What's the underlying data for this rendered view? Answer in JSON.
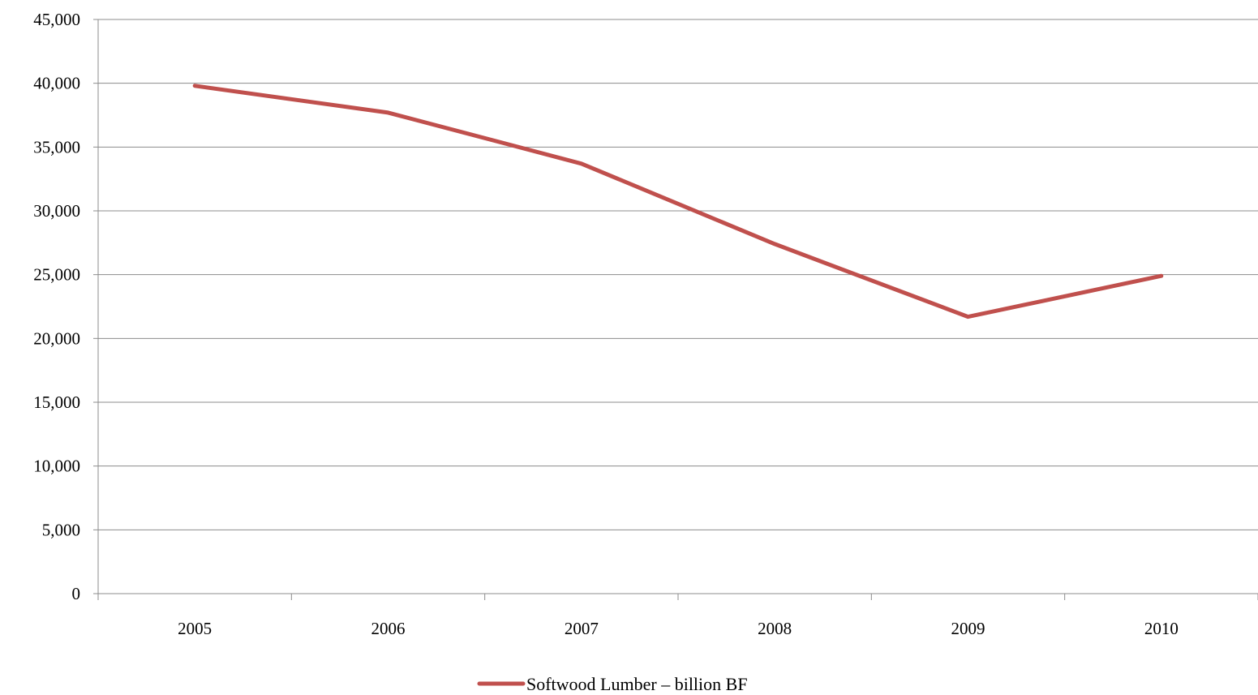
{
  "chart_data": {
    "type": "line",
    "categories": [
      "2005",
      "2006",
      "2007",
      "2008",
      "2009",
      "2010"
    ],
    "series": [
      {
        "name": "Softwood Lumber – billion BF",
        "values": [
          39800,
          37700,
          33700,
          27400,
          21700,
          24900
        ],
        "color": "#c0504d"
      }
    ],
    "y_tick_labels": [
      "0",
      "5,000",
      "10,000",
      "15,000",
      "20,000",
      "25,000",
      "30,000",
      "35,000",
      "40,000",
      "45,000"
    ],
    "ylim": [
      0,
      45000
    ],
    "y_tick_step": 5000,
    "grid": true,
    "legend_position": "bottom",
    "title": "",
    "xlabel": "",
    "ylabel": ""
  }
}
